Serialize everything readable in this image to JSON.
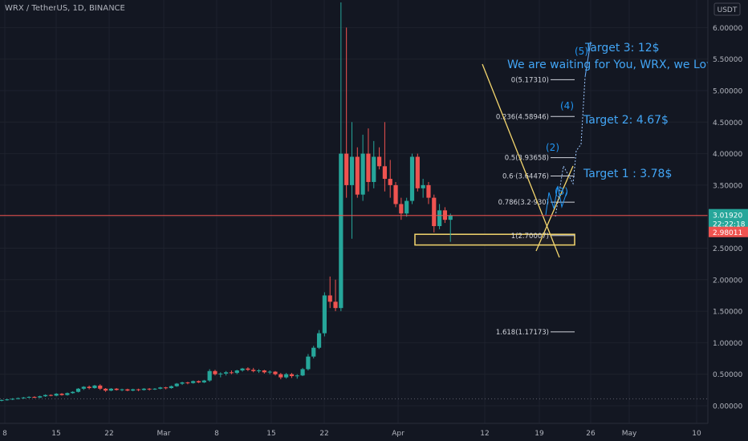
{
  "header": {
    "symbol_line": "WRX / TetherUS, 1D, BINANCE",
    "currency_badge": "USDT"
  },
  "colors": {
    "background": "#131722",
    "up": "#26a69a",
    "down": "#ef5350",
    "fib": "#d1d4dc",
    "wave_label": "#2196f3",
    "trendline": "#f5d76e",
    "zone": "#1e1e24",
    "zone_border": "#f5d76e",
    "price_line": "#ef5350",
    "grid": "#1e222d"
  },
  "chart_data": {
    "type": "candlestick",
    "title": "WRX / TetherUS, 1D, BINANCE",
    "ylim": [
      -0.05,
      6.4
    ],
    "y_ticks": [
      "0.00000",
      "0.50000",
      "1.00000",
      "1.50000",
      "2.00000",
      "2.50000",
      "3.00000",
      "3.50000",
      "4.00000",
      "4.50000",
      "5.00000",
      "5.50000",
      "6.00000"
    ],
    "x_ticks": [
      "8",
      "15",
      "22",
      "Mar",
      "8",
      "15",
      "22",
      "Apr",
      "12",
      "19",
      "26",
      "May",
      "10"
    ],
    "last_price": {
      "value": 3.0192,
      "label": "3.01920",
      "countdown": "22:22:18"
    },
    "previous_close": {
      "value": 2.98011,
      "label": "2.98011"
    },
    "fib_levels": [
      {
        "ratio": "0",
        "value": 5.1731,
        "label": "0(5.17310)"
      },
      {
        "ratio": "0.236",
        "value": 4.58946,
        "label": "0.236(4.58946)"
      },
      {
        "ratio": "0.5",
        "value": 3.93658,
        "label": "0.5(3.93658)"
      },
      {
        "ratio": "0.618",
        "value": 3.64476,
        "label": "0.6·(3.64476)"
      },
      {
        "ratio": "0.786",
        "value": 3.2293,
        "label": "0.786(3.2·930)"
      },
      {
        "ratio": "1",
        "value": 2.7,
        "label": "1(2.70007)"
      },
      {
        "ratio": "1.618",
        "value": 1.17173,
        "label": "1.618(1.17173)"
      }
    ],
    "support_zone": [
      2.55,
      2.72
    ],
    "wave_labels": [
      "(5)",
      "(4)",
      "(2)",
      "(3)"
    ],
    "annotations": [
      "Target 3: 12$",
      "We are waiting for You, WRX, we Love",
      "Target 2: 4.67$",
      "Target 1  : 3.78$"
    ],
    "candles": [
      {
        "o": 0.08,
        "h": 0.1,
        "l": 0.07,
        "c": 0.09
      },
      {
        "o": 0.09,
        "h": 0.11,
        "l": 0.08,
        "c": 0.1
      },
      {
        "o": 0.1,
        "h": 0.12,
        "l": 0.09,
        "c": 0.11
      },
      {
        "o": 0.11,
        "h": 0.13,
        "l": 0.1,
        "c": 0.12
      },
      {
        "o": 0.12,
        "h": 0.14,
        "l": 0.11,
        "c": 0.13
      },
      {
        "o": 0.13,
        "h": 0.15,
        "l": 0.12,
        "c": 0.14
      },
      {
        "o": 0.14,
        "h": 0.15,
        "l": 0.12,
        "c": 0.13
      },
      {
        "o": 0.13,
        "h": 0.16,
        "l": 0.12,
        "c": 0.15
      },
      {
        "o": 0.15,
        "h": 0.18,
        "l": 0.14,
        "c": 0.17
      },
      {
        "o": 0.17,
        "h": 0.18,
        "l": 0.15,
        "c": 0.16
      },
      {
        "o": 0.16,
        "h": 0.2,
        "l": 0.15,
        "c": 0.19
      },
      {
        "o": 0.19,
        "h": 0.2,
        "l": 0.16,
        "c": 0.17
      },
      {
        "o": 0.17,
        "h": 0.21,
        "l": 0.16,
        "c": 0.2
      },
      {
        "o": 0.2,
        "h": 0.23,
        "l": 0.19,
        "c": 0.22
      },
      {
        "o": 0.22,
        "h": 0.28,
        "l": 0.21,
        "c": 0.27
      },
      {
        "o": 0.27,
        "h": 0.31,
        "l": 0.25,
        "c": 0.3
      },
      {
        "o": 0.3,
        "h": 0.32,
        "l": 0.26,
        "c": 0.28
      },
      {
        "o": 0.28,
        "h": 0.33,
        "l": 0.27,
        "c": 0.32
      },
      {
        "o": 0.32,
        "h": 0.34,
        "l": 0.25,
        "c": 0.27
      },
      {
        "o": 0.27,
        "h": 0.28,
        "l": 0.22,
        "c": 0.24
      },
      {
        "o": 0.24,
        "h": 0.28,
        "l": 0.23,
        "c": 0.27
      },
      {
        "o": 0.27,
        "h": 0.28,
        "l": 0.24,
        "c": 0.25
      },
      {
        "o": 0.25,
        "h": 0.27,
        "l": 0.23,
        "c": 0.26
      },
      {
        "o": 0.26,
        "h": 0.27,
        "l": 0.23,
        "c": 0.24
      },
      {
        "o": 0.24,
        "h": 0.27,
        "l": 0.23,
        "c": 0.26
      },
      {
        "o": 0.26,
        "h": 0.27,
        "l": 0.23,
        "c": 0.25
      },
      {
        "o": 0.25,
        "h": 0.28,
        "l": 0.24,
        "c": 0.27
      },
      {
        "o": 0.27,
        "h": 0.28,
        "l": 0.24,
        "c": 0.26
      },
      {
        "o": 0.26,
        "h": 0.28,
        "l": 0.25,
        "c": 0.27
      },
      {
        "o": 0.27,
        "h": 0.3,
        "l": 0.26,
        "c": 0.29
      },
      {
        "o": 0.29,
        "h": 0.3,
        "l": 0.26,
        "c": 0.28
      },
      {
        "o": 0.28,
        "h": 0.32,
        "l": 0.27,
        "c": 0.31
      },
      {
        "o": 0.31,
        "h": 0.36,
        "l": 0.3,
        "c": 0.35
      },
      {
        "o": 0.35,
        "h": 0.38,
        "l": 0.33,
        "c": 0.37
      },
      {
        "o": 0.37,
        "h": 0.38,
        "l": 0.34,
        "c": 0.36
      },
      {
        "o": 0.36,
        "h": 0.4,
        "l": 0.35,
        "c": 0.39
      },
      {
        "o": 0.39,
        "h": 0.4,
        "l": 0.36,
        "c": 0.37
      },
      {
        "o": 0.37,
        "h": 0.41,
        "l": 0.36,
        "c": 0.4
      },
      {
        "o": 0.4,
        "h": 0.58,
        "l": 0.38,
        "c": 0.55
      },
      {
        "o": 0.55,
        "h": 0.57,
        "l": 0.48,
        "c": 0.5
      },
      {
        "o": 0.5,
        "h": 0.53,
        "l": 0.45,
        "c": 0.51
      },
      {
        "o": 0.51,
        "h": 0.55,
        "l": 0.48,
        "c": 0.53
      },
      {
        "o": 0.53,
        "h": 0.56,
        "l": 0.5,
        "c": 0.52
      },
      {
        "o": 0.52,
        "h": 0.57,
        "l": 0.5,
        "c": 0.56
      },
      {
        "o": 0.56,
        "h": 0.6,
        "l": 0.54,
        "c": 0.59
      },
      {
        "o": 0.59,
        "h": 0.61,
        "l": 0.55,
        "c": 0.57
      },
      {
        "o": 0.57,
        "h": 0.6,
        "l": 0.53,
        "c": 0.55
      },
      {
        "o": 0.55,
        "h": 0.58,
        "l": 0.52,
        "c": 0.56
      },
      {
        "o": 0.56,
        "h": 0.57,
        "l": 0.51,
        "c": 0.53
      },
      {
        "o": 0.53,
        "h": 0.56,
        "l": 0.5,
        "c": 0.54
      },
      {
        "o": 0.54,
        "h": 0.55,
        "l": 0.48,
        "c": 0.5
      },
      {
        "o": 0.5,
        "h": 0.52,
        "l": 0.42,
        "c": 0.45
      },
      {
        "o": 0.45,
        "h": 0.52,
        "l": 0.43,
        "c": 0.5
      },
      {
        "o": 0.5,
        "h": 0.52,
        "l": 0.44,
        "c": 0.47
      },
      {
        "o": 0.47,
        "h": 0.5,
        "l": 0.43,
        "c": 0.48
      },
      {
        "o": 0.48,
        "h": 0.6,
        "l": 0.47,
        "c": 0.58
      },
      {
        "o": 0.58,
        "h": 0.82,
        "l": 0.56,
        "c": 0.78
      },
      {
        "o": 0.78,
        "h": 0.95,
        "l": 0.75,
        "c": 0.92
      },
      {
        "o": 0.92,
        "h": 1.2,
        "l": 0.9,
        "c": 1.15
      },
      {
        "o": 1.15,
        "h": 1.8,
        "l": 1.1,
        "c": 1.75
      },
      {
        "o": 1.75,
        "h": 2.05,
        "l": 1.55,
        "c": 1.65
      },
      {
        "o": 1.65,
        "h": 2.0,
        "l": 1.5,
        "c": 1.55
      },
      {
        "o": 1.55,
        "h": 6.4,
        "l": 1.5,
        "c": 4.0
      },
      {
        "o": 4.0,
        "h": 6.0,
        "l": 3.3,
        "c": 3.5
      },
      {
        "o": 3.5,
        "h": 4.5,
        "l": 2.65,
        "c": 3.95
      },
      {
        "o": 3.95,
        "h": 4.1,
        "l": 3.3,
        "c": 3.35
      },
      {
        "o": 3.35,
        "h": 4.3,
        "l": 3.25,
        "c": 4.0
      },
      {
        "o": 4.0,
        "h": 4.4,
        "l": 3.4,
        "c": 3.55
      },
      {
        "o": 3.55,
        "h": 4.2,
        "l": 3.45,
        "c": 3.95
      },
      {
        "o": 3.95,
        "h": 4.1,
        "l": 3.75,
        "c": 3.8
      },
      {
        "o": 3.8,
        "h": 4.5,
        "l": 3.4,
        "c": 3.6
      },
      {
        "o": 3.6,
        "h": 3.9,
        "l": 3.3,
        "c": 3.5
      },
      {
        "o": 3.5,
        "h": 3.55,
        "l": 3.15,
        "c": 3.2
      },
      {
        "o": 3.2,
        "h": 3.3,
        "l": 2.95,
        "c": 3.05
      },
      {
        "o": 3.05,
        "h": 3.3,
        "l": 3.0,
        "c": 3.25
      },
      {
        "o": 3.25,
        "h": 4.0,
        "l": 3.2,
        "c": 3.95
      },
      {
        "o": 3.95,
        "h": 4.0,
        "l": 3.4,
        "c": 3.45
      },
      {
        "o": 3.45,
        "h": 3.6,
        "l": 3.3,
        "c": 3.5
      },
      {
        "o": 3.5,
        "h": 3.55,
        "l": 3.2,
        "c": 3.3
      },
      {
        "o": 3.3,
        "h": 3.35,
        "l": 2.75,
        "c": 2.85
      },
      {
        "o": 2.85,
        "h": 3.2,
        "l": 2.8,
        "c": 3.1
      },
      {
        "o": 3.1,
        "h": 3.15,
        "l": 2.9,
        "c": 2.95
      },
      {
        "o": 2.95,
        "h": 3.05,
        "l": 2.6,
        "c": 3.02
      }
    ]
  }
}
